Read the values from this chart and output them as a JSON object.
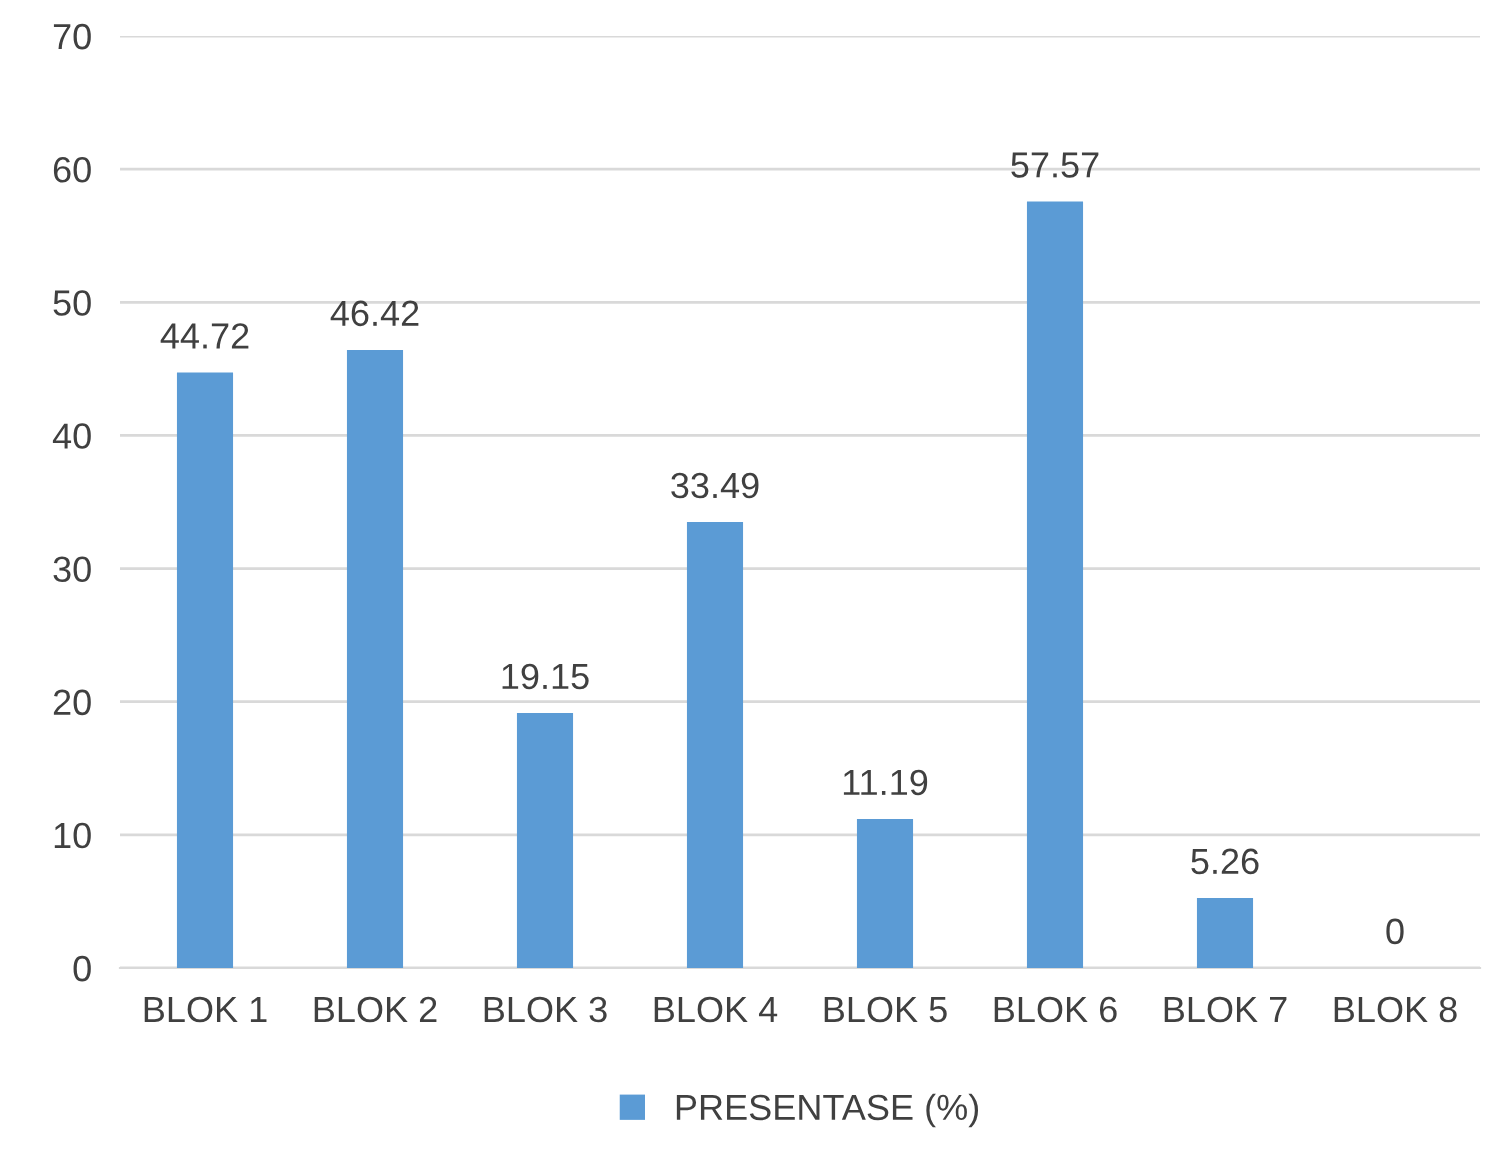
{
  "chart_data": {
    "type": "bar",
    "categories": [
      "BLOK 1",
      "BLOK 2",
      "BLOK 3",
      "BLOK 4",
      "BLOK 5",
      "BLOK 6",
      "BLOK 7",
      "BLOK 8"
    ],
    "series": [
      {
        "name": "PRESENTASE (%)",
        "color": "#5b9bd5",
        "values": [
          44.72,
          46.42,
          19.15,
          33.49,
          11.19,
          57.57,
          5.26,
          0
        ]
      }
    ],
    "ylim": [
      0,
      70
    ],
    "yticks": [
      0,
      10,
      20,
      30,
      40,
      50,
      60,
      70
    ],
    "grid": "y",
    "legend": "bottom",
    "data_labels": true
  }
}
